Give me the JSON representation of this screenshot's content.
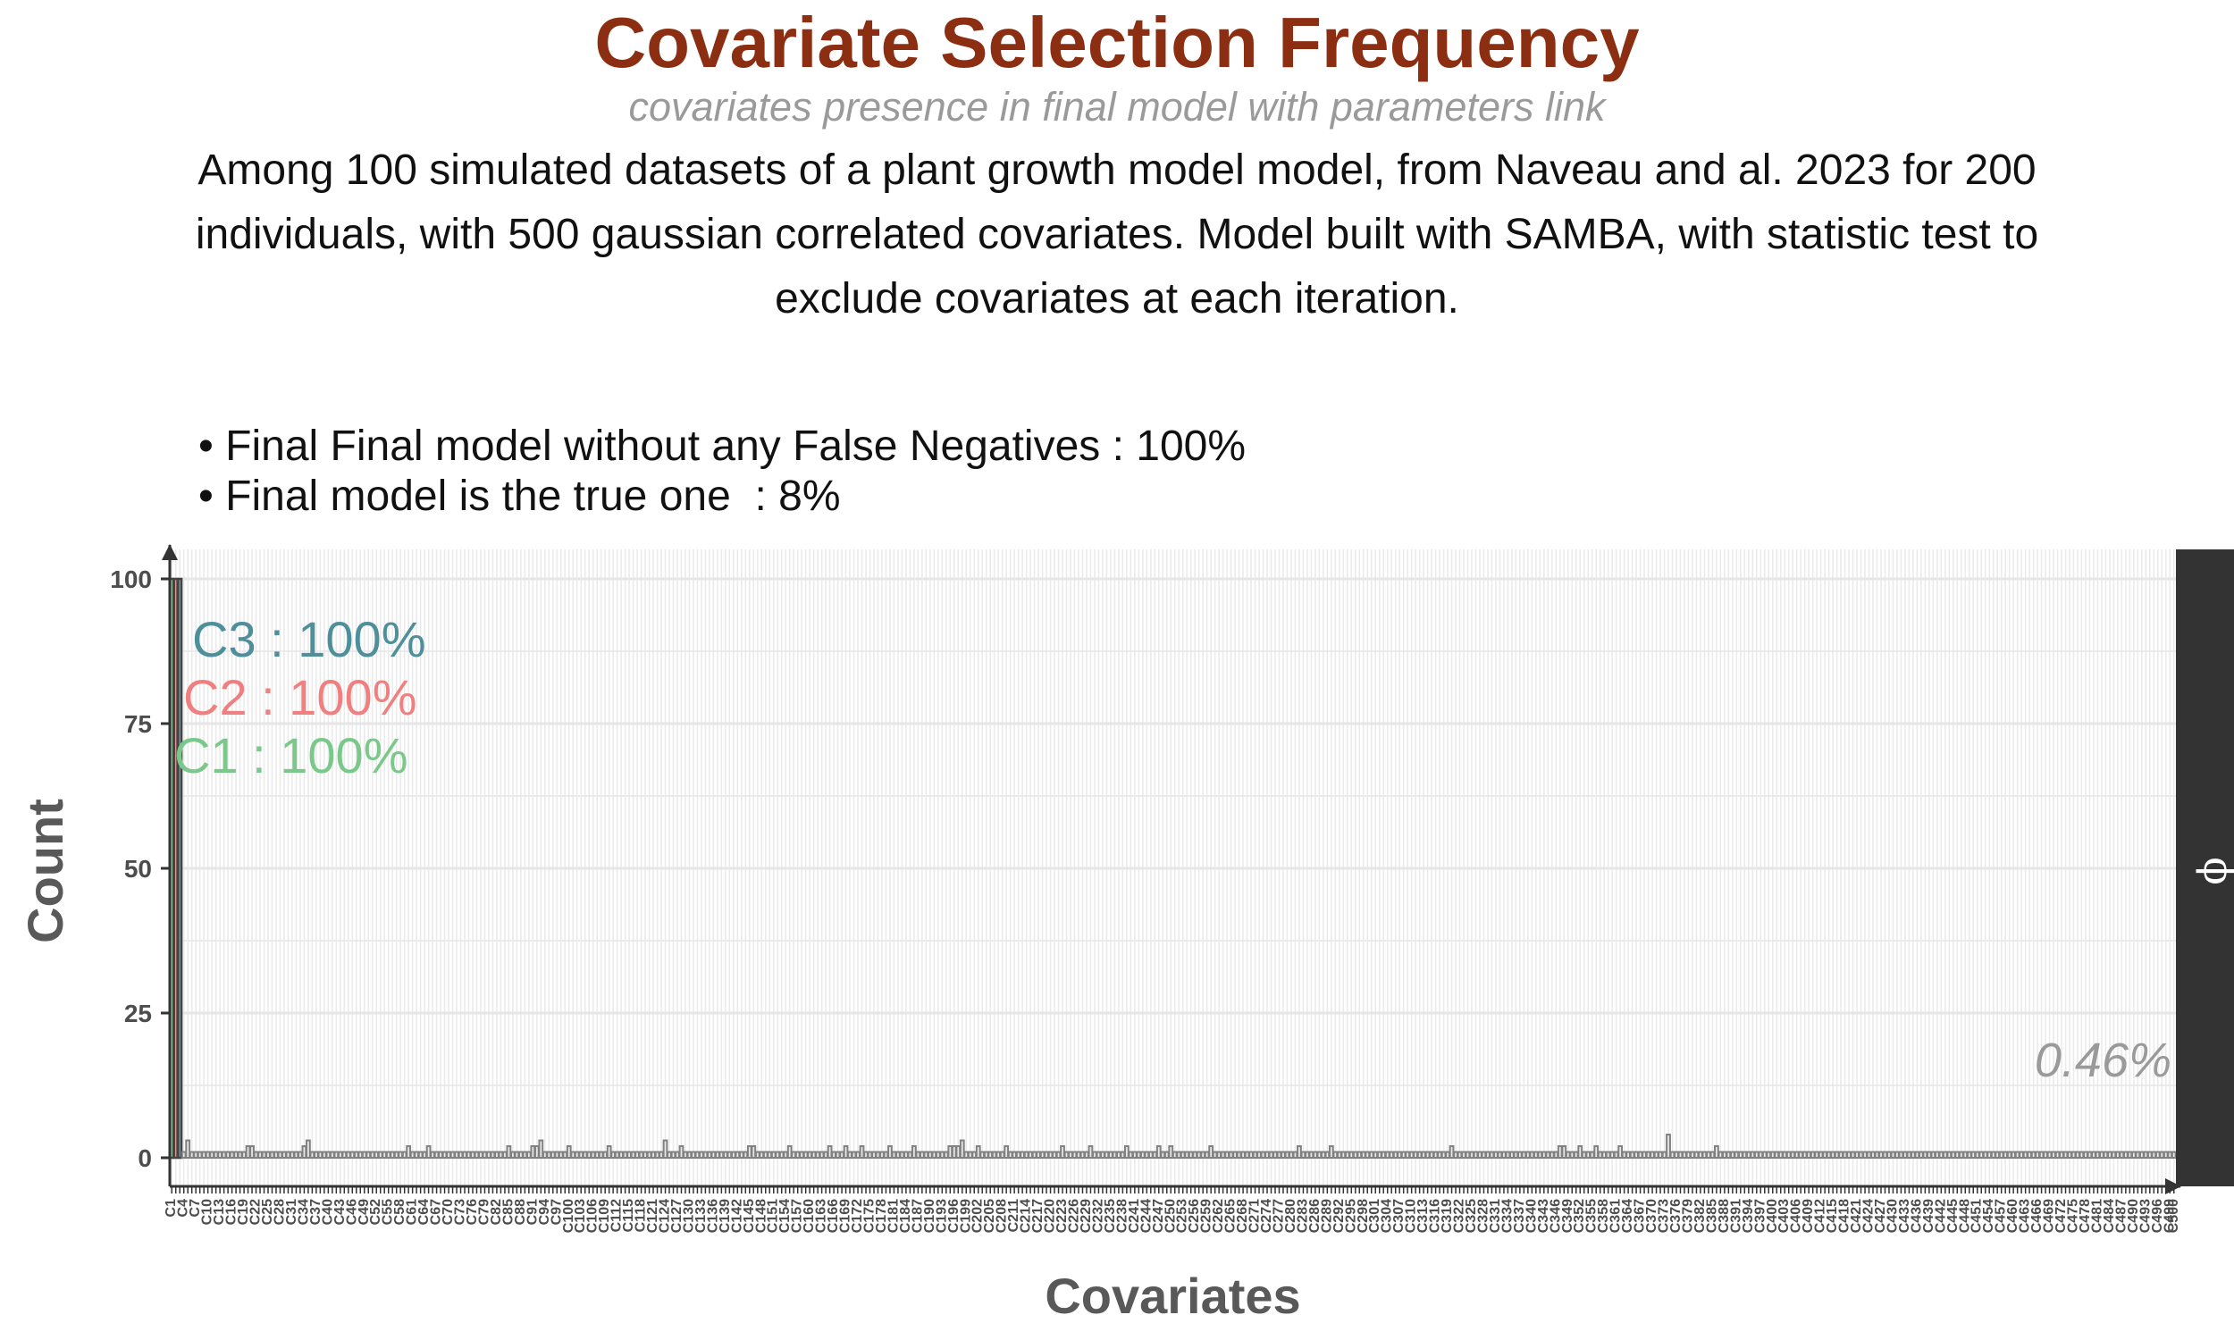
{
  "header": {
    "title": "Covariate Selection Frequency",
    "subtitle": "covariates presence in final model with parameters link",
    "caption": "Among 100 simulated datasets of a plant growth model model, from Naveau and al. 2023 for 200 individuals, with 500 gaussian correlated covariates. Model built with SAMBA, with statistic test to exclude covariates at each iteration."
  },
  "summary": {
    "bullets": [
      "• Final Final model without any False Negatives : 100%",
      "• Final model is the true one  : 8%"
    ]
  },
  "chart_data": {
    "type": "bar",
    "xlabel": "Covariates",
    "ylabel": "Count",
    "ylim": [
      0,
      100
    ],
    "yticks": [
      0,
      25,
      50,
      75,
      100
    ],
    "facet_label": "ϕ",
    "grid": true,
    "n_categories": 500,
    "category_prefix": "C",
    "true_covariates": [
      {
        "name": "C1",
        "value": 100,
        "label": "C1 : 100%",
        "color": "#7ac98a"
      },
      {
        "name": "C2",
        "value": 100,
        "label": "C2 : 100%",
        "color": "#f08080"
      },
      {
        "name": "C3",
        "value": 100,
        "label": "C3 : 100%",
        "color": "#4e8f9b"
      }
    ],
    "other_nonzero": [
      {
        "name": "C5",
        "value": 3
      },
      {
        "name": "C20",
        "value": 2
      },
      {
        "name": "C21",
        "value": 2
      },
      {
        "name": "C34",
        "value": 2
      },
      {
        "name": "C35",
        "value": 3
      },
      {
        "name": "C60",
        "value": 2
      },
      {
        "name": "C65",
        "value": 2
      },
      {
        "name": "C85",
        "value": 2
      },
      {
        "name": "C91",
        "value": 2
      },
      {
        "name": "C92",
        "value": 2
      },
      {
        "name": "C93",
        "value": 3
      },
      {
        "name": "C100",
        "value": 2
      },
      {
        "name": "C110",
        "value": 2
      },
      {
        "name": "C124",
        "value": 3
      },
      {
        "name": "C128",
        "value": 2
      },
      {
        "name": "C145",
        "value": 2
      },
      {
        "name": "C146",
        "value": 2
      },
      {
        "name": "C155",
        "value": 2
      },
      {
        "name": "C165",
        "value": 2
      },
      {
        "name": "C169",
        "value": 2
      },
      {
        "name": "C173",
        "value": 2
      },
      {
        "name": "C180",
        "value": 2
      },
      {
        "name": "C186",
        "value": 2
      },
      {
        "name": "C195",
        "value": 2
      },
      {
        "name": "C196",
        "value": 2
      },
      {
        "name": "C197",
        "value": 2
      },
      {
        "name": "C198",
        "value": 3
      },
      {
        "name": "C202",
        "value": 2
      },
      {
        "name": "C209",
        "value": 2
      },
      {
        "name": "C223",
        "value": 2
      },
      {
        "name": "C230",
        "value": 2
      },
      {
        "name": "C239",
        "value": 2
      },
      {
        "name": "C247",
        "value": 2
      },
      {
        "name": "C250",
        "value": 2
      },
      {
        "name": "C260",
        "value": 2
      },
      {
        "name": "C282",
        "value": 2
      },
      {
        "name": "C290",
        "value": 2
      },
      {
        "name": "C320",
        "value": 2
      },
      {
        "name": "C347",
        "value": 2
      },
      {
        "name": "C348",
        "value": 2
      },
      {
        "name": "C352",
        "value": 2
      },
      {
        "name": "C356",
        "value": 2
      },
      {
        "name": "C362",
        "value": 2
      },
      {
        "name": "C374",
        "value": 4
      },
      {
        "name": "C386",
        "value": 2
      }
    ],
    "default_value": 1,
    "other_label": "0.46%",
    "bar_fill": "#e8e8e8",
    "bar_stroke": "#808080"
  }
}
